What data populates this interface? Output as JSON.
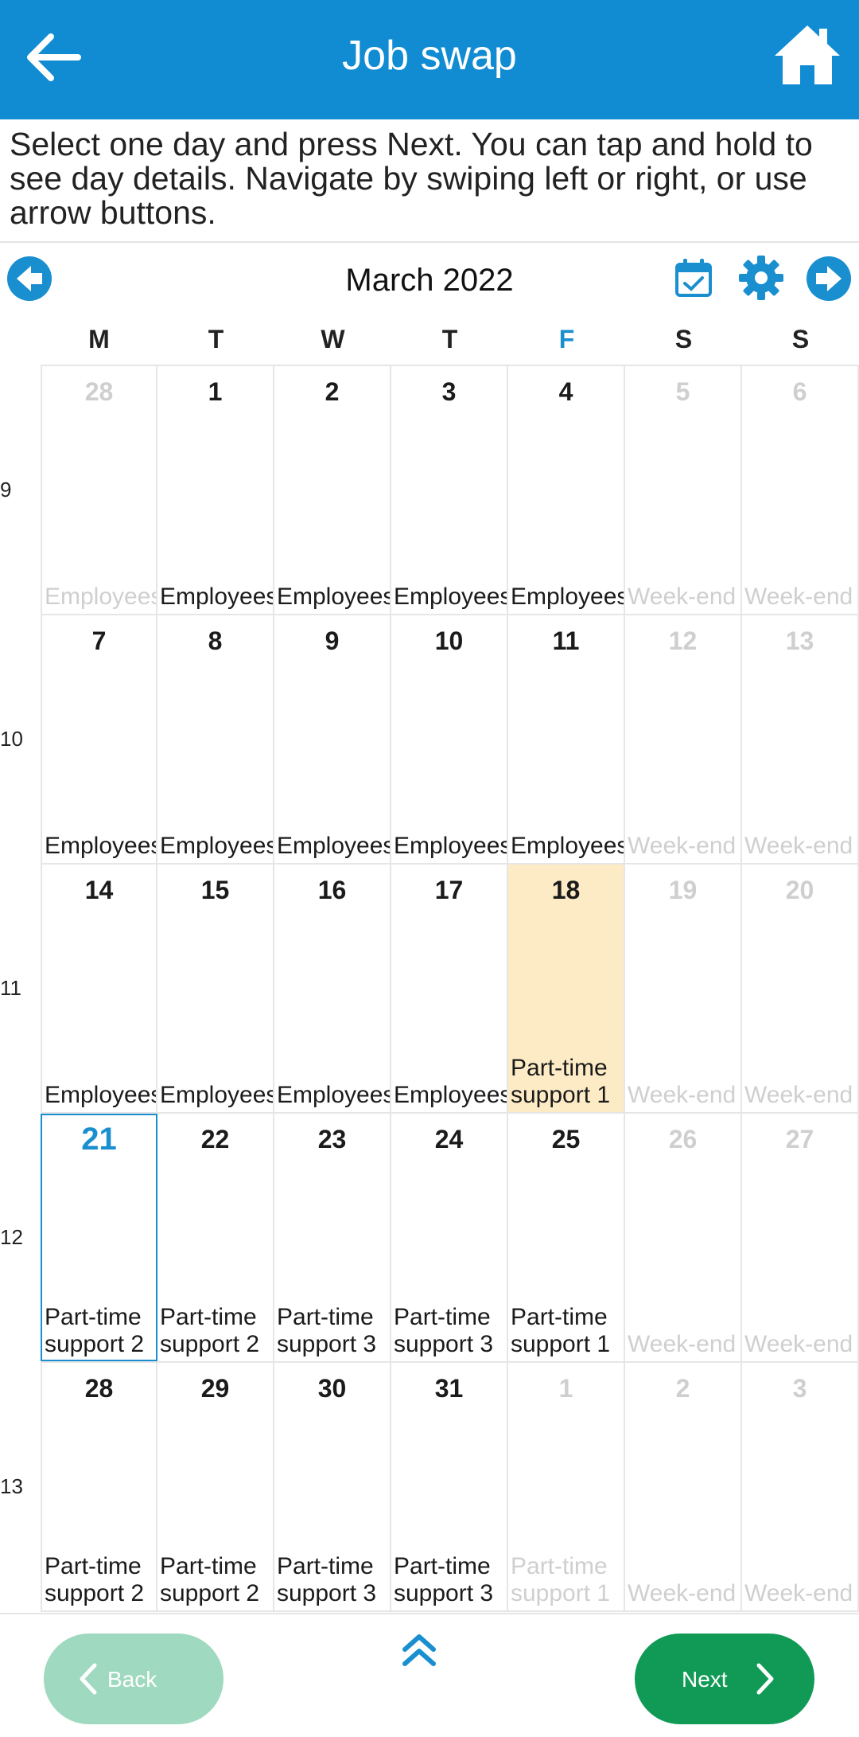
{
  "header": {
    "title": "Job swap",
    "back_icon": "arrow-left-icon",
    "home_icon": "home-icon",
    "color": "#118cd3"
  },
  "instructions": "Select one day and press Next. You can tap and hold to see day details. Navigate by swiping left or right, or use arrow buttons.",
  "calendar": {
    "month": "March 2022",
    "weekdays": [
      "M",
      "T",
      "W",
      "T",
      "F",
      "S",
      "S"
    ],
    "week_numbers": [
      "9",
      "10",
      "11",
      "12",
      "13"
    ],
    "accent": "#1a8fd0",
    "selected_color": "#fdebc6",
    "weeks": [
      [
        {
          "day": "28",
          "label": "Employees",
          "dim": true
        },
        {
          "day": "1",
          "label": "Employees"
        },
        {
          "day": "2",
          "label": "Employees"
        },
        {
          "day": "3",
          "label": "Employees"
        },
        {
          "day": "4",
          "label": "Employees"
        },
        {
          "day": "5",
          "label": "Week-end",
          "dim": true
        },
        {
          "day": "6",
          "label": "Week-end",
          "dim": true
        }
      ],
      [
        {
          "day": "7",
          "label": "Employees"
        },
        {
          "day": "8",
          "label": "Employees"
        },
        {
          "day": "9",
          "label": "Employees"
        },
        {
          "day": "10",
          "label": "Employees"
        },
        {
          "day": "11",
          "label": "Employees"
        },
        {
          "day": "12",
          "label": "Week-end",
          "dim": true
        },
        {
          "day": "13",
          "label": "Week-end",
          "dim": true
        }
      ],
      [
        {
          "day": "14",
          "label": "Employees"
        },
        {
          "day": "15",
          "label": "Employees"
        },
        {
          "day": "16",
          "label": "Employees"
        },
        {
          "day": "17",
          "label": "Employees"
        },
        {
          "day": "18",
          "label": "Part-time\nsupport 1",
          "selected": true
        },
        {
          "day": "19",
          "label": "Week-end",
          "dim": true
        },
        {
          "day": "20",
          "label": "Week-end",
          "dim": true
        }
      ],
      [
        {
          "day": "21",
          "label": "Part-time\nsupport 2",
          "today": true
        },
        {
          "day": "22",
          "label": "Part-time\nsupport 2"
        },
        {
          "day": "23",
          "label": "Part-time\nsupport 3"
        },
        {
          "day": "24",
          "label": "Part-time\nsupport 3"
        },
        {
          "day": "25",
          "label": "Part-time\nsupport 1"
        },
        {
          "day": "26",
          "label": "Week-end",
          "dim": true
        },
        {
          "day": "27",
          "label": "Week-end",
          "dim": true
        }
      ],
      [
        {
          "day": "28",
          "label": "Part-time\nsupport 2"
        },
        {
          "day": "29",
          "label": "Part-time\nsupport 2"
        },
        {
          "day": "30",
          "label": "Part-time\nsupport 3"
        },
        {
          "day": "31",
          "label": "Part-time\nsupport 3"
        },
        {
          "day": "1",
          "label": "Part-time\nsupport 1",
          "dim": true
        },
        {
          "day": "2",
          "label": "Week-end",
          "dim": true
        },
        {
          "day": "3",
          "label": "Week-end",
          "dim": true
        }
      ]
    ]
  },
  "footer": {
    "back_label": "Back",
    "next_label": "Next",
    "back_color": "#9fd9bf",
    "next_color": "#109a55"
  }
}
